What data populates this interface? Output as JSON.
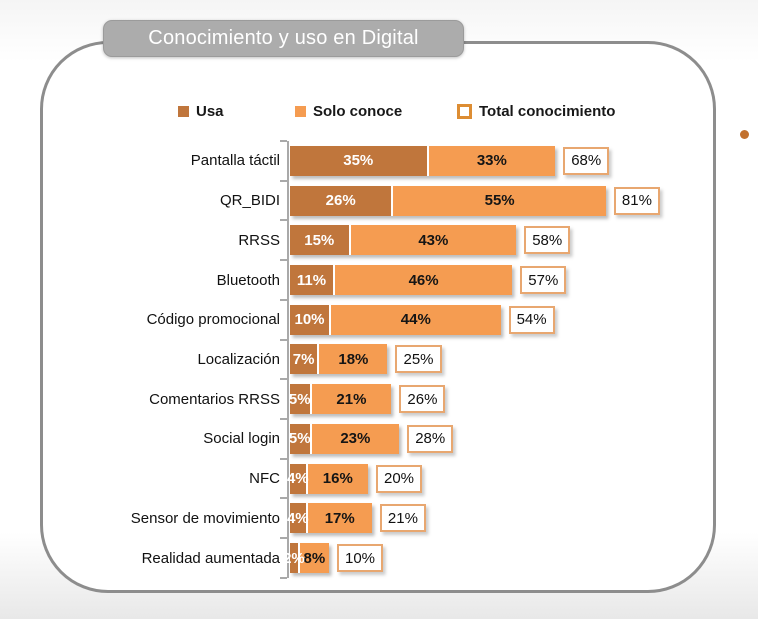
{
  "title": "Conocimiento y uso en Digital",
  "legend": {
    "usa": "Usa",
    "solo_conoce": "Solo conoce",
    "total": "Total conocimiento"
  },
  "colors": {
    "usa": "#C0763C",
    "solo_conoce": "#F59C51",
    "total_box_border": "#E8A770",
    "legend_total_border": "#DD8D33",
    "badge": "#ACACAC",
    "frame_border": "#8D8D8D",
    "axis": "#A9A9A9",
    "side_dot": "#C2712E"
  },
  "chart_data": {
    "type": "bar",
    "orientation": "horizontal",
    "stacked": true,
    "value_suffix": "%",
    "xlim": [
      0,
      100
    ],
    "legend_position": "top",
    "grid": false,
    "categories": [
      "Pantalla táctil",
      "QR_BIDI",
      "RRSS",
      "Bluetooth",
      "Código promocional",
      "Localización",
      "Comentarios RRSS",
      "Social login",
      "NFC",
      "Sensor de movimiento",
      "Realidad aumentada"
    ],
    "series": [
      {
        "name": "Usa",
        "values": [
          35,
          26,
          15,
          11,
          10,
          7,
          5,
          5,
          4,
          4,
          2
        ]
      },
      {
        "name": "Solo conoce",
        "values": [
          33,
          55,
          43,
          46,
          44,
          18,
          21,
          23,
          16,
          17,
          8
        ]
      }
    ],
    "totals": {
      "name": "Total conocimiento",
      "values": [
        68,
        81,
        58,
        57,
        54,
        25,
        26,
        28,
        20,
        21,
        10
      ]
    }
  }
}
